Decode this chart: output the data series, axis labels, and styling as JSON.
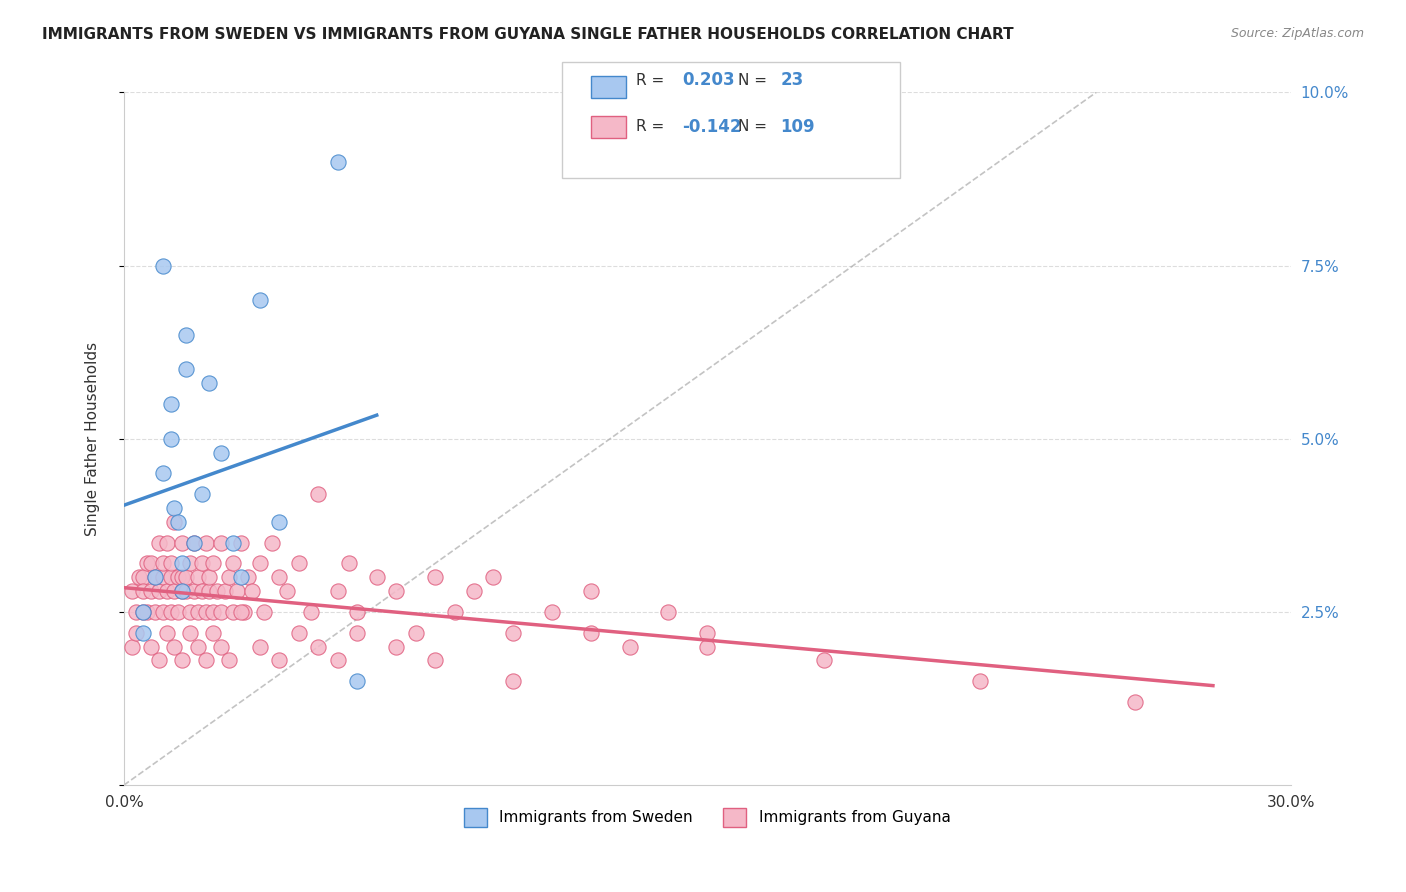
{
  "title": "IMMIGRANTS FROM SWEDEN VS IMMIGRANTS FROM GUYANA SINGLE FATHER HOUSEHOLDS CORRELATION CHART",
  "source": "Source: ZipAtlas.com",
  "xlabel": "",
  "ylabel": "Single Father Households",
  "xlim": [
    0.0,
    0.3
  ],
  "ylim": [
    0.0,
    0.1
  ],
  "xticks": [
    0.0,
    0.05,
    0.1,
    0.15,
    0.2,
    0.25,
    0.3
  ],
  "xticklabels": [
    "0.0%",
    "",
    "",
    "",
    "",
    "",
    "30.0%"
  ],
  "yticks": [
    0.0,
    0.025,
    0.05,
    0.075,
    0.1
  ],
  "yticklabels": [
    "",
    "2.5%",
    "5.0%",
    "7.5%",
    "10.0%"
  ],
  "R_sweden": 0.203,
  "N_sweden": 23,
  "R_guyana": -0.142,
  "N_guyana": 109,
  "sweden_color": "#a8c8f0",
  "guyana_color": "#f5b8c8",
  "sweden_line_color": "#4488cc",
  "guyana_line_color": "#e06080",
  "ref_line_color": "#aaaaaa",
  "background_color": "#ffffff",
  "grid_color": "#dddddd",
  "sweden_dots_x": [
    0.005,
    0.005,
    0.008,
    0.01,
    0.01,
    0.012,
    0.012,
    0.013,
    0.014,
    0.015,
    0.015,
    0.016,
    0.016,
    0.018,
    0.02,
    0.022,
    0.025,
    0.028,
    0.03,
    0.035,
    0.04,
    0.055,
    0.06
  ],
  "sweden_dots_y": [
    0.025,
    0.022,
    0.03,
    0.045,
    0.075,
    0.05,
    0.055,
    0.04,
    0.038,
    0.032,
    0.028,
    0.06,
    0.065,
    0.035,
    0.042,
    0.058,
    0.048,
    0.035,
    0.03,
    0.07,
    0.038,
    0.09,
    0.015
  ],
  "guyana_dots_x": [
    0.002,
    0.003,
    0.004,
    0.005,
    0.005,
    0.006,
    0.006,
    0.007,
    0.007,
    0.008,
    0.008,
    0.009,
    0.009,
    0.01,
    0.01,
    0.01,
    0.011,
    0.011,
    0.012,
    0.012,
    0.012,
    0.013,
    0.013,
    0.014,
    0.014,
    0.015,
    0.015,
    0.015,
    0.016,
    0.016,
    0.017,
    0.017,
    0.018,
    0.018,
    0.019,
    0.019,
    0.02,
    0.02,
    0.021,
    0.021,
    0.022,
    0.022,
    0.023,
    0.023,
    0.024,
    0.025,
    0.025,
    0.026,
    0.027,
    0.028,
    0.028,
    0.029,
    0.03,
    0.031,
    0.032,
    0.033,
    0.035,
    0.036,
    0.038,
    0.04,
    0.042,
    0.045,
    0.048,
    0.05,
    0.055,
    0.058,
    0.06,
    0.065,
    0.07,
    0.075,
    0.08,
    0.085,
    0.09,
    0.095,
    0.1,
    0.11,
    0.12,
    0.13,
    0.14,
    0.15,
    0.002,
    0.003,
    0.005,
    0.007,
    0.009,
    0.011,
    0.013,
    0.015,
    0.017,
    0.019,
    0.021,
    0.023,
    0.025,
    0.027,
    0.03,
    0.035,
    0.04,
    0.045,
    0.05,
    0.055,
    0.06,
    0.07,
    0.08,
    0.1,
    0.12,
    0.15,
    0.18,
    0.22,
    0.26
  ],
  "guyana_dots_y": [
    0.028,
    0.025,
    0.03,
    0.03,
    0.028,
    0.032,
    0.025,
    0.028,
    0.032,
    0.025,
    0.03,
    0.028,
    0.035,
    0.03,
    0.025,
    0.032,
    0.028,
    0.035,
    0.025,
    0.03,
    0.032,
    0.028,
    0.038,
    0.03,
    0.025,
    0.028,
    0.03,
    0.035,
    0.028,
    0.03,
    0.032,
    0.025,
    0.028,
    0.035,
    0.025,
    0.03,
    0.028,
    0.032,
    0.025,
    0.035,
    0.028,
    0.03,
    0.025,
    0.032,
    0.028,
    0.035,
    0.025,
    0.028,
    0.03,
    0.025,
    0.032,
    0.028,
    0.035,
    0.025,
    0.03,
    0.028,
    0.032,
    0.025,
    0.035,
    0.03,
    0.028,
    0.032,
    0.025,
    0.042,
    0.028,
    0.032,
    0.025,
    0.03,
    0.028,
    0.022,
    0.03,
    0.025,
    0.028,
    0.03,
    0.022,
    0.025,
    0.028,
    0.02,
    0.025,
    0.022,
    0.02,
    0.022,
    0.025,
    0.02,
    0.018,
    0.022,
    0.02,
    0.018,
    0.022,
    0.02,
    0.018,
    0.022,
    0.02,
    0.018,
    0.025,
    0.02,
    0.018,
    0.022,
    0.02,
    0.018,
    0.022,
    0.02,
    0.018,
    0.015,
    0.022,
    0.02,
    0.018,
    0.015,
    0.012
  ]
}
